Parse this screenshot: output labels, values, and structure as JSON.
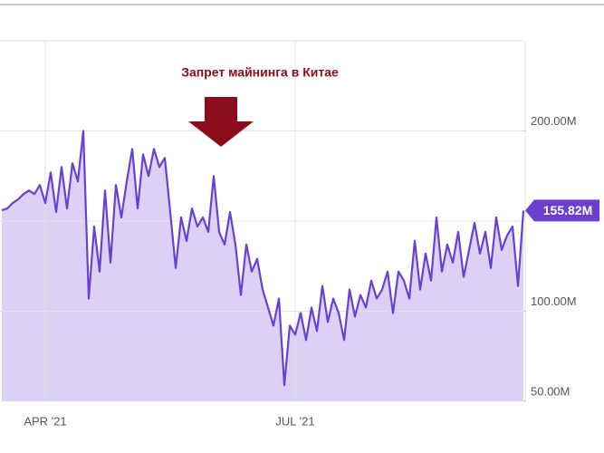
{
  "chart_data": {
    "type": "area",
    "annotation": "Запрет майнинга в Китае",
    "categories": [
      null,
      null,
      null,
      null,
      null,
      null,
      null,
      null,
      "APR '21",
      null,
      null,
      null,
      null,
      null,
      null,
      null,
      null,
      null,
      null,
      null,
      null,
      null,
      null,
      null,
      null,
      null,
      null,
      null,
      null,
      null,
      null,
      null,
      null,
      null,
      null,
      null,
      null,
      null,
      null,
      null,
      null,
      null,
      null,
      null,
      null,
      null,
      null,
      null,
      null,
      null,
      null,
      null,
      null,
      null,
      "JUL '21",
      null,
      null,
      null,
      null,
      null,
      null,
      null,
      null,
      null,
      null,
      null,
      null,
      null,
      null,
      null,
      null,
      null,
      null,
      null,
      null,
      null,
      null,
      null,
      null,
      null,
      null,
      null,
      null,
      null,
      null,
      null,
      null,
      null,
      null,
      null,
      null,
      null,
      null,
      null,
      null,
      null,
      null
    ],
    "values": [
      156000000.0,
      157000000.0,
      160000000.0,
      162000000.0,
      165000000.0,
      167000000.0,
      165000000.0,
      170000000.0,
      160000000.0,
      177000000.0,
      155000000.0,
      180000000.0,
      157000000.0,
      182000000.0,
      172000000.0,
      200000000.0,
      107000000.0,
      147000000.0,
      122000000.0,
      167000000.0,
      127000000.0,
      170000000.0,
      152000000.0,
      172000000.0,
      190000000.0,
      157000000.0,
      187000000.0,
      175000000.0,
      190000000.0,
      180000000.0,
      185000000.0,
      155000000.0,
      124000000.0,
      152000000.0,
      139000000.0,
      157000000.0,
      147000000.0,
      152000000.0,
      144000000.0,
      175000000.0,
      144000000.0,
      137000000.0,
      155000000.0,
      137000000.0,
      109000000.0,
      137000000.0,
      122000000.0,
      129000000.0,
      112000000.0,
      102000000.0,
      92000000.0,
      107000000.0,
      59000000.0,
      92000000.0,
      87000000.0,
      99000000.0,
      84000000.0,
      102000000.0,
      89000000.0,
      114000000.0,
      94000000.0,
      107000000.0,
      99000000.0,
      84000000.0,
      112000000.0,
      97000000.0,
      109000000.0,
      102000000.0,
      117000000.0,
      107000000.0,
      112000000.0,
      122000000.0,
      99000000.0,
      122000000.0,
      117000000.0,
      107000000.0,
      139000000.0,
      112000000.0,
      132000000.0,
      117000000.0,
      152000000.0,
      122000000.0,
      137000000.0,
      127000000.0,
      144000000.0,
      119000000.0,
      134000000.0,
      149000000.0,
      132000000.0,
      144000000.0,
      124000000.0,
      152000000.0,
      134000000.0,
      142000000.0,
      147000000.0,
      114000000.0,
      155820000
    ],
    "value_labels": [
      null,
      null,
      null,
      null,
      null,
      null,
      null,
      null,
      null,
      null,
      null,
      null,
      null,
      null,
      null,
      null,
      null,
      null,
      null,
      null,
      null,
      null,
      null,
      null,
      null,
      null,
      null,
      null,
      null,
      null,
      null,
      null,
      null,
      null,
      null,
      null,
      null,
      null,
      null,
      null,
      null,
      null,
      null,
      null,
      null,
      null,
      null,
      null,
      null,
      null,
      null,
      null,
      null,
      null,
      null,
      null,
      null,
      null,
      null,
      null,
      null,
      null,
      null,
      null,
      null,
      null,
      null,
      null,
      null,
      null,
      null,
      null,
      null,
      null,
      null,
      null,
      null,
      null,
      null,
      null,
      null,
      null,
      null,
      null,
      null,
      null,
      null,
      null,
      null,
      null,
      null,
      null,
      null,
      null,
      null,
      null,
      "155.82M"
    ],
    "color": "#6a3fd4",
    "fill_color": "#dcd1f4",
    "label_color": "#6a3fd0",
    "annotation_color": "#8b0d1c",
    "ylim": [
      50000000.0,
      250000000.0
    ],
    "yticks": [
      {
        "value": 50000000.0,
        "label": "50.00M"
      },
      {
        "value": 100000000.0,
        "label": "100.00M"
      },
      {
        "value": 200000000.0,
        "label": "200.00M"
      }
    ],
    "ygrid": [
      100000000.0,
      150000000.0,
      200000000.0,
      250000000.0
    ],
    "grid": true
  }
}
